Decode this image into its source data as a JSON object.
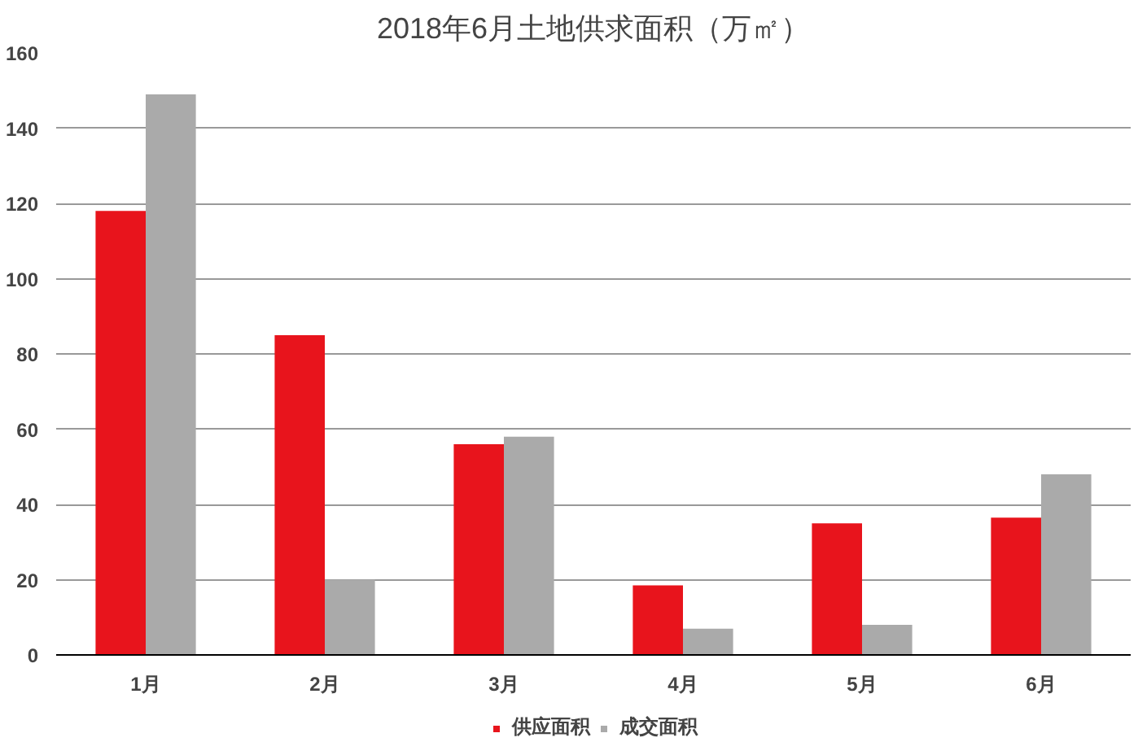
{
  "chart_data": {
    "type": "bar",
    "title": "2018年6月土地供求面积（万㎡）",
    "categories": [
      "1月",
      "2月",
      "3月",
      "4月",
      "5月",
      "6月"
    ],
    "series": [
      {
        "name": "供应面积",
        "color": "#e8141c",
        "values": [
          118,
          85,
          56,
          18.5,
          35,
          36.5
        ]
      },
      {
        "name": "成交面积",
        "color": "#aaaaaa",
        "values": [
          149,
          20,
          58,
          7,
          8,
          48
        ]
      }
    ],
    "ylim": [
      0,
      160
    ],
    "yticks": [
      0,
      20,
      40,
      60,
      80,
      100,
      120,
      140,
      160
    ],
    "grid": "y",
    "legend": "bottom"
  }
}
